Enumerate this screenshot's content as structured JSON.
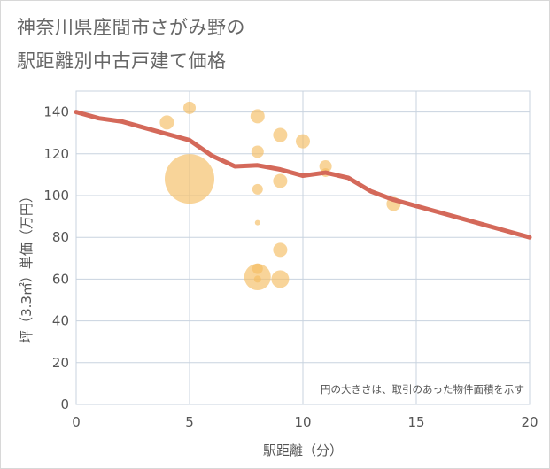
{
  "title_line1": "神奈川県座間市さがみ野の",
  "title_line2": "駅距離別中古戸建て価格",
  "colors": {
    "bubble": "#f5bd63",
    "line": "#d4695a",
    "grid": "#c8d3df",
    "text": "#555555"
  },
  "chart_data": {
    "type": "scatter",
    "xlabel": "駅距離（分）",
    "ylabel": "坪（3.3㎡）単価（万円）",
    "xlim": [
      0,
      20
    ],
    "ylim": [
      0,
      150
    ],
    "x_ticks": [
      0,
      5,
      10,
      15,
      20
    ],
    "y_ticks": [
      0,
      20,
      40,
      60,
      80,
      100,
      120,
      140
    ],
    "note": "円の大きさは、取引のあった物件面積を示す",
    "bubbles": [
      {
        "x": 4,
        "y": 135,
        "r": 8
      },
      {
        "x": 5,
        "y": 142,
        "r": 7
      },
      {
        "x": 5,
        "y": 108,
        "r": 28
      },
      {
        "x": 8,
        "y": 138,
        "r": 8
      },
      {
        "x": 8,
        "y": 121,
        "r": 7
      },
      {
        "x": 8,
        "y": 103,
        "r": 6
      },
      {
        "x": 8,
        "y": 87,
        "r": 3
      },
      {
        "x": 8,
        "y": 65,
        "r": 6
      },
      {
        "x": 8,
        "y": 61,
        "r": 15
      },
      {
        "x": 8,
        "y": 60,
        "r": 4
      },
      {
        "x": 9,
        "y": 129,
        "r": 8
      },
      {
        "x": 9,
        "y": 107,
        "r": 8
      },
      {
        "x": 9,
        "y": 74,
        "r": 8
      },
      {
        "x": 9,
        "y": 60,
        "r": 10
      },
      {
        "x": 10,
        "y": 126,
        "r": 8
      },
      {
        "x": 11,
        "y": 114,
        "r": 7
      },
      {
        "x": 11,
        "y": 111,
        "r": 5
      },
      {
        "x": 14,
        "y": 96,
        "r": 8
      }
    ],
    "trend_line": {
      "x": [
        0,
        1,
        2,
        3,
        4,
        5,
        6,
        7,
        8,
        9,
        10,
        11,
        12,
        13,
        14,
        15,
        16,
        17,
        18,
        19,
        20
      ],
      "y": [
        140,
        137,
        135.5,
        132.5,
        129.5,
        126.5,
        119,
        114,
        114.5,
        112.5,
        109.5,
        111,
        108.5,
        102,
        98,
        95,
        92,
        89,
        86,
        83,
        80
      ]
    }
  }
}
